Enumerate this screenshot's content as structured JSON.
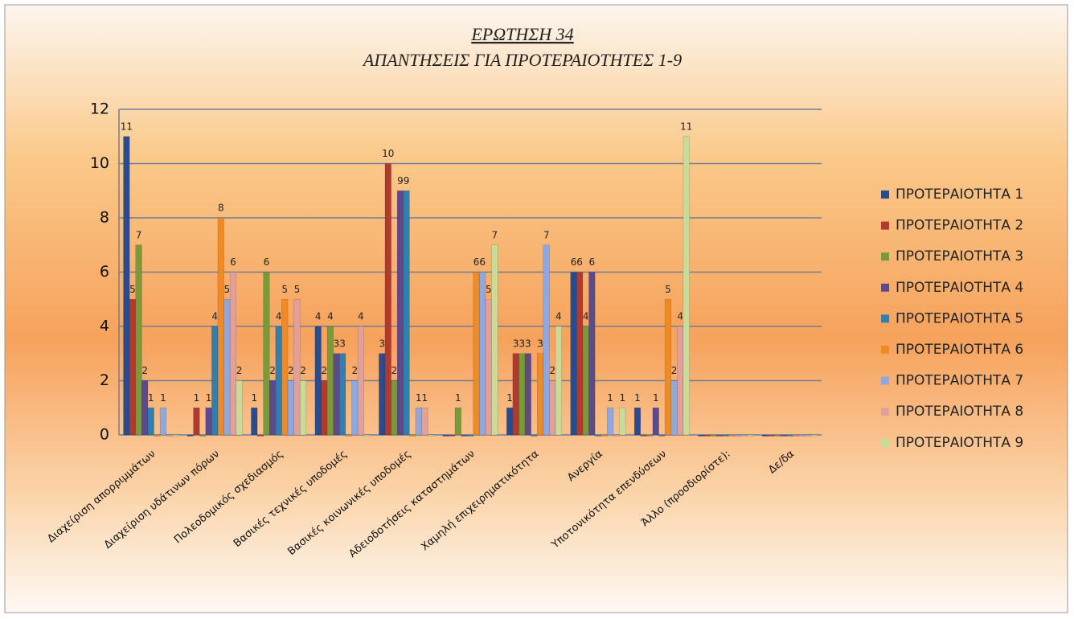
{
  "chart_data": {
    "type": "bar",
    "title": "ΕΡΩΤΗΣΗ 34",
    "subtitle": "ΑΠΑΝΤΗΣΕΙΣ ΓΙΑ ΠΡΟΤΕΡΑΙΟΤΗΤΕΣ 1-9",
    "categories": [
      "Διαχείριση απορριμμάτων",
      "Διαχείριση υδάτινων πόρων",
      "Πολεοδομικός σχεδιασμός",
      "Βασικές τεχνικές υποδομές",
      "Βασικές κοινωνικές υποδομές",
      "Αδειοδοτήσεις καταστημάτων",
      "Χαμηλή επιχειρηματικότητα",
      "Ανεργία",
      "Υποτονικότητα  επενδύσεων",
      "Άλλο (προσδιορίστε):",
      "Δε/δα"
    ],
    "series": [
      {
        "name": "ΠΡΟΤΕΡΑΙΟΤΗΤΑ 1",
        "color": "#2a4b8d",
        "values": [
          11,
          0,
          1,
          4,
          3,
          0,
          1,
          6,
          1,
          0,
          0
        ]
      },
      {
        "name": "ΠΡΟΤΕΡΑΙΟΤΗΤΑ 2",
        "color": "#b03a2e",
        "values": [
          5,
          1,
          0,
          2,
          10,
          0,
          3,
          6,
          0,
          0,
          0
        ]
      },
      {
        "name": "ΠΡΟΤΕΡΑΙΟΤΗΤΑ 3",
        "color": "#7a9a3a",
        "values": [
          7,
          0,
          6,
          4,
          2,
          1,
          3,
          4,
          0,
          0,
          0
        ]
      },
      {
        "name": "ΠΡΟΤΕΡΑΙΟΤΗΤΑ 4",
        "color": "#5e4a8a",
        "values": [
          2,
          1,
          2,
          3,
          9,
          0,
          3,
          6,
          1,
          0,
          0
        ]
      },
      {
        "name": "ΠΡΟΤΕΡΑΙΟΤΗΤΑ 5",
        "color": "#2f7fb0",
        "values": [
          1,
          4,
          4,
          3,
          9,
          0,
          0,
          0,
          0,
          0,
          0
        ]
      },
      {
        "name": "ΠΡΟΤΕΡΑΙΟΤΗΤΑ 6",
        "color": "#f08a24",
        "values": [
          0,
          8,
          5,
          0,
          0,
          6,
          3,
          0,
          5,
          0,
          0
        ]
      },
      {
        "name": "ΠΡΟΤΕΡΑΙΟΤΗΤΑ 7",
        "color": "#8fa8e0",
        "values": [
          1,
          5,
          2,
          2,
          1,
          6,
          7,
          1,
          2,
          0,
          0
        ]
      },
      {
        "name": "ΠΡΟΤΕΡΑΙΟΤΗΤΑ 8",
        "color": "#e2a09a",
        "values": [
          0,
          6,
          5,
          4,
          1,
          5,
          2,
          0,
          4,
          0,
          0
        ]
      },
      {
        "name": "ΠΡΟΤΕΡΑΙΟΤΗΤΑ 9",
        "color": "#c8dc9a",
        "values": [
          0,
          2,
          2,
          0,
          0,
          7,
          4,
          1,
          11,
          0,
          0
        ]
      }
    ],
    "ylim": [
      0,
      12
    ],
    "yticks": [
      0,
      2,
      4,
      6,
      8,
      10,
      12
    ],
    "grid": true,
    "legend": "right"
  }
}
